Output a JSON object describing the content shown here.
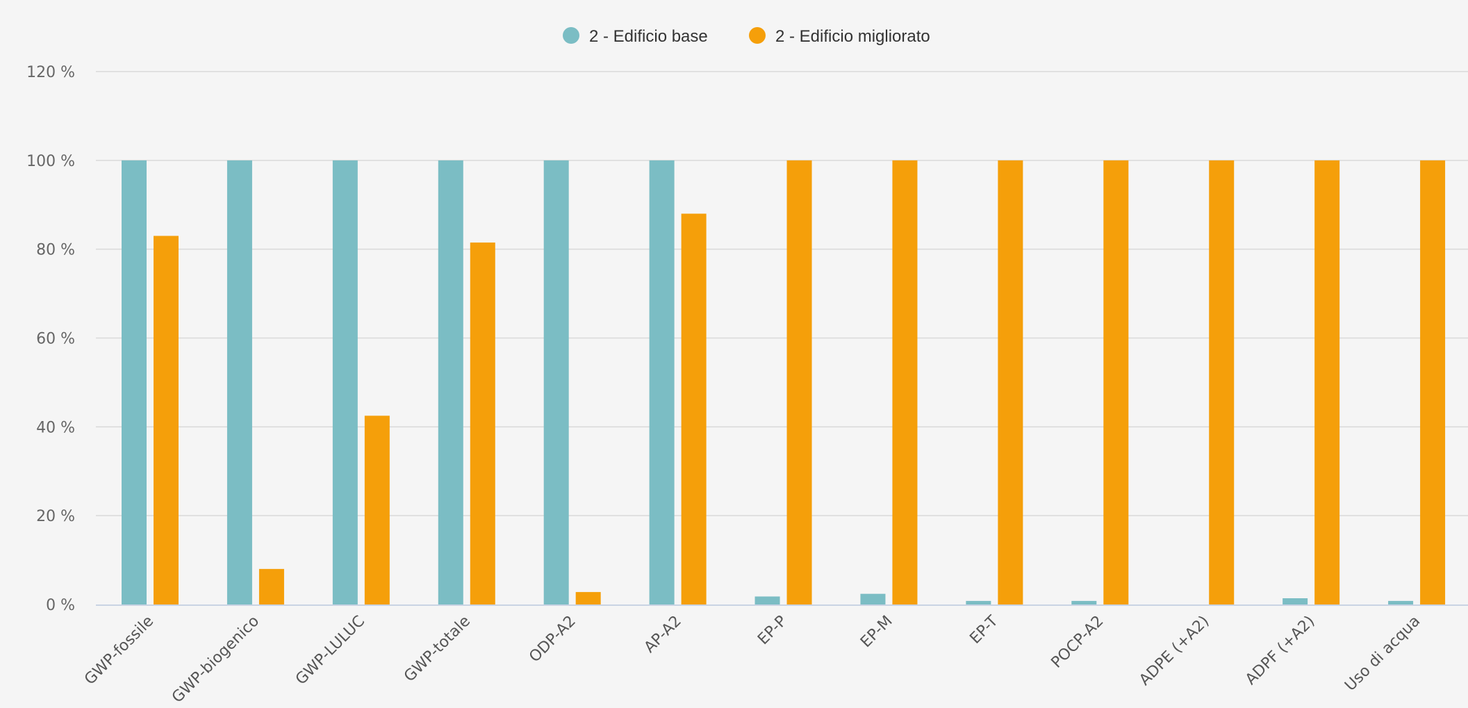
{
  "chart_data": {
    "type": "bar",
    "title": "",
    "xlabel": "",
    "ylabel": "",
    "ylim": [
      0,
      120
    ],
    "yticks": [
      0,
      20,
      40,
      60,
      80,
      100,
      120
    ],
    "ytick_suffix": " %",
    "grid": true,
    "legend": "top-center",
    "categories": [
      "GWP-fossile",
      "GWP-biogenico",
      "GWP-LULUC",
      "GWP-totale",
      "ODP-A2",
      "AP-A2",
      "EP-P",
      "EP-M",
      "EP-T",
      "POCP-A2",
      "ADPE (+A2)",
      "ADPF (+A2)",
      "Uso di acqua"
    ],
    "series": [
      {
        "name": "2 - Edificio base",
        "color": "#7bbdc4",
        "values": [
          100,
          100,
          100,
          100,
          100,
          100,
          1.8,
          2.4,
          0.8,
          0.8,
          0,
          1.4,
          0.8
        ]
      },
      {
        "name": "2 - Edificio migliorato",
        "color": "#f59f0a",
        "values": [
          83,
          8,
          42.5,
          81.5,
          2.8,
          88,
          100,
          100,
          100,
          100,
          100,
          100,
          100
        ]
      }
    ]
  }
}
